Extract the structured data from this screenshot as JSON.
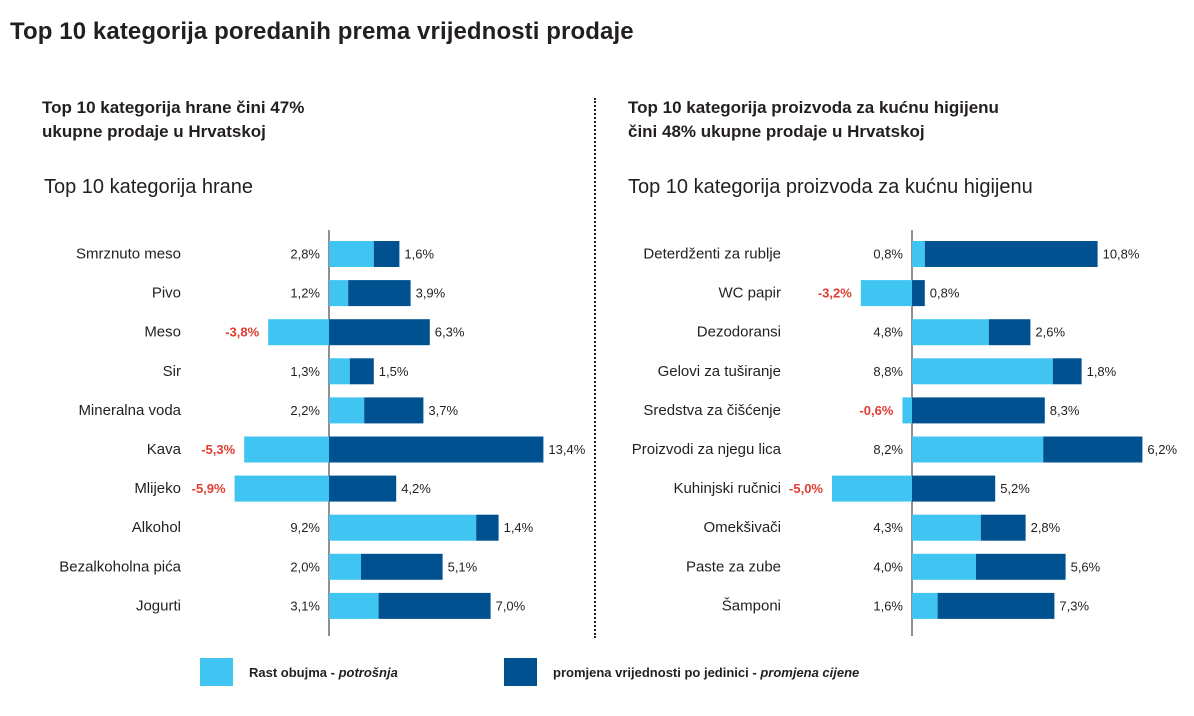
{
  "title": "Top 10 kategorija poredanih prema vrijednosti prodaje",
  "colors": {
    "light": "#40c4f2",
    "dark": "#005190",
    "negative": "#e03c31",
    "text": "#231f20"
  },
  "legend": {
    "light_text": "Rast obujma - ",
    "light_italic": "potrošnja",
    "dark_text": "promjena vrijednosti po jedinici - ",
    "dark_italic": "promjena cijene"
  },
  "chart_data": [
    {
      "type": "bar",
      "subtitle_line1": "Top 10 kategorija hrane čini 47%",
      "subtitle_line2": "ukupne prodaje u Hrvatskoj",
      "title": "Top 10 kategorija hrane",
      "categories": [
        "Smrznuto meso",
        "Pivo",
        "Meso",
        "Sir",
        "Mineralna voda",
        "Kava",
        "Mlijeko",
        "Alkohol",
        "Bezalkoholna pića",
        "Jogurti"
      ],
      "series": [
        {
          "name": "Rast obujma - potrošnja",
          "values": [
            2.8,
            1.2,
            -3.8,
            1.3,
            2.2,
            -5.3,
            -5.9,
            9.2,
            2.0,
            3.1
          ],
          "labels": [
            "2,8%",
            "1,2%",
            "-3,8%",
            "1,3%",
            "2,2%",
            "-5,3%",
            "-5,9%",
            "9,2%",
            "2,0%",
            "3,1%"
          ]
        },
        {
          "name": "promjena vrijednosti po jedinici - promjena cijene",
          "values": [
            1.6,
            3.9,
            6.3,
            1.5,
            3.7,
            13.4,
            4.2,
            1.4,
            5.1,
            7.0
          ],
          "labels": [
            "1,6%",
            "3,9%",
            "6,3%",
            "1,5%",
            "3,7%",
            "13,4%",
            "4,2%",
            "1,4%",
            "5,1%",
            "7,0%"
          ]
        }
      ]
    },
    {
      "type": "bar",
      "subtitle_line1": "Top 10 kategorija proizvoda za kućnu higijenu",
      "subtitle_line2": "čini 48% ukupne prodaje u Hrvatskoj",
      "title": "Top 10 kategorija proizvoda za kućnu higijenu",
      "categories": [
        "Deterdženti za rublje",
        "WC papir",
        "Dezodoransi",
        "Gelovi za tuširanje",
        "Sredstva za čišćenje",
        "Proizvodi za njegu lica",
        "Kuhinjski ručnici",
        "Omekšivači",
        "Paste za zube",
        "Šamponi"
      ],
      "series": [
        {
          "name": "Rast obujma - potrošnja",
          "values": [
            0.8,
            -3.2,
            4.8,
            8.8,
            -0.6,
            8.2,
            -5.0,
            4.3,
            4.0,
            1.6
          ],
          "labels": [
            "0,8%",
            "-3,2%",
            "4,8%",
            "8,8%",
            "-0,6%",
            "8,2%",
            "-5,0%",
            "4,3%",
            "4,0%",
            "1,6%"
          ]
        },
        {
          "name": "promjena vrijednosti po jedinici - promjena cijene",
          "values": [
            10.8,
            0.8,
            2.6,
            1.8,
            8.3,
            6.2,
            5.2,
            2.8,
            5.6,
            7.3
          ],
          "labels": [
            "10,8%",
            "0,8%",
            "2,6%",
            "1,8%",
            "8,3%",
            "6,2%",
            "5,2%",
            "2,8%",
            "5,6%",
            "7,3%"
          ]
        }
      ]
    }
  ]
}
